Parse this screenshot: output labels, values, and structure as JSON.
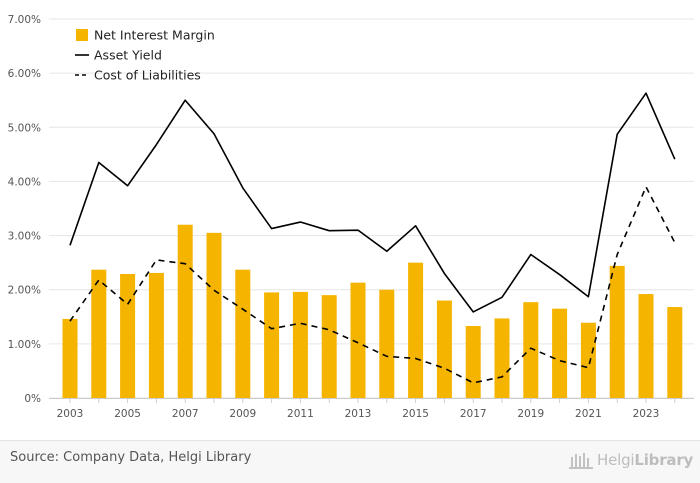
{
  "chart_data": {
    "type": "bar",
    "title": "",
    "xlabel": "",
    "ylabel": "",
    "x": [
      "2003",
      "2004",
      "2005",
      "2006",
      "2007",
      "2008",
      "2009",
      "2010",
      "2011",
      "2012",
      "2013",
      "2014",
      "2015",
      "2016",
      "2017",
      "2018",
      "2019",
      "2020",
      "2021",
      "2022",
      "2023",
      "2024"
    ],
    "x_tick_labels": [
      "2003",
      "2005",
      "2007",
      "2009",
      "2011",
      "2013",
      "2015",
      "2017",
      "2019",
      "2021",
      "2023"
    ],
    "y_tick_labels": [
      "0%",
      "1.00%",
      "2.00%",
      "3.00%",
      "4.00%",
      "5.00%",
      "6.00%",
      "7.00%"
    ],
    "ylim": [
      0,
      7
    ],
    "grid": true,
    "legend_position": "top-left",
    "series": [
      {
        "name": "Net Interest Margin",
        "kind": "bar",
        "color": "#f5b400",
        "values": [
          1.46,
          2.37,
          2.29,
          2.31,
          3.2,
          3.05,
          2.37,
          1.95,
          1.96,
          1.9,
          2.13,
          2.0,
          2.5,
          1.8,
          1.33,
          1.47,
          1.77,
          1.65,
          1.39,
          2.44,
          1.92,
          1.68
        ]
      },
      {
        "name": "Asset Yield",
        "kind": "line",
        "style": "solid",
        "color": "#000000",
        "values": [
          2.82,
          4.35,
          3.92,
          4.68,
          5.5,
          4.88,
          3.88,
          3.13,
          3.25,
          3.09,
          3.1,
          2.71,
          3.18,
          2.3,
          1.59,
          1.86,
          2.65,
          2.28,
          1.87,
          4.87,
          5.63,
          4.41
        ]
      },
      {
        "name": "Cost of Liabilities",
        "kind": "line",
        "style": "dashed",
        "color": "#000000",
        "values": [
          1.42,
          2.18,
          1.73,
          2.55,
          2.48,
          1.99,
          1.64,
          1.28,
          1.38,
          1.26,
          1.02,
          0.77,
          0.73,
          0.55,
          0.28,
          0.39,
          0.92,
          0.69,
          0.56,
          2.65,
          3.9,
          2.87
        ]
      }
    ]
  },
  "footer": {
    "source": "Source: Company Data, Helgi Library",
    "logo_light": "Helgi",
    "logo_bold": "Library"
  },
  "colors": {
    "grid": "#e6e6e6",
    "axis_text": "#555555",
    "bar": "#f5b400"
  }
}
